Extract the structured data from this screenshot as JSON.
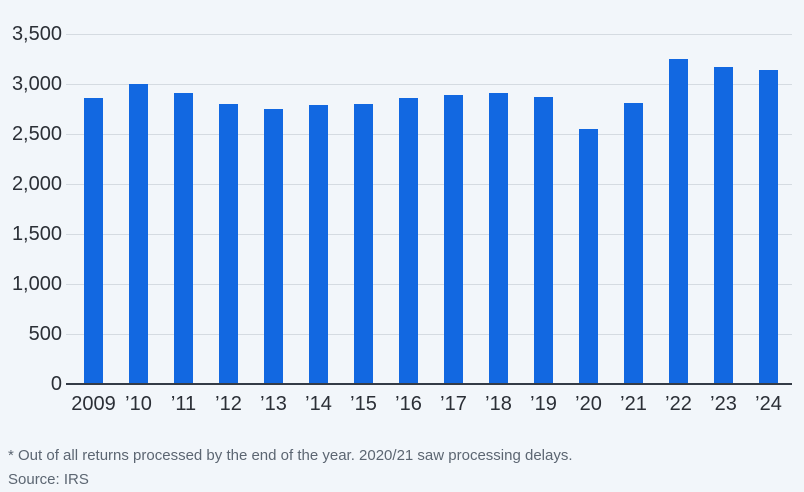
{
  "chart_data": {
    "type": "bar",
    "title": "",
    "categories": [
      "2009",
      "’10",
      "’11",
      "’12",
      "’13",
      "’14",
      "’15",
      "’16",
      "’17",
      "’18",
      "’19",
      "’20",
      "’21",
      "’22",
      "’23",
      "’24"
    ],
    "values": [
      2860,
      3000,
      2910,
      2800,
      2750,
      2790,
      2800,
      2860,
      2890,
      2910,
      2870,
      2550,
      2810,
      3250,
      3170,
      3140
    ],
    "xlabel": "",
    "ylabel": "",
    "ylim": [
      0,
      3500
    ],
    "y_ticks": [
      0,
      500,
      1000,
      1500,
      2000,
      2500,
      3000,
      3500
    ],
    "y_tick_labels": [
      "0",
      "500",
      "1,000",
      "1,500",
      "2,000",
      "2,500",
      "3,000",
      "3,500"
    ],
    "grid": true,
    "legend": false
  },
  "footer": {
    "footnote": "* Out of all returns processed by the end of the year. 2020/21 saw processing delays.",
    "source": "Source: IRS"
  },
  "colors": {
    "background": "#F2F6FA",
    "bar": "#1268E1",
    "gridline": "#D5DBE1",
    "axis_line": "#343B46",
    "tick_label": "#2B2F36",
    "footnote_text": "#5C6672"
  }
}
